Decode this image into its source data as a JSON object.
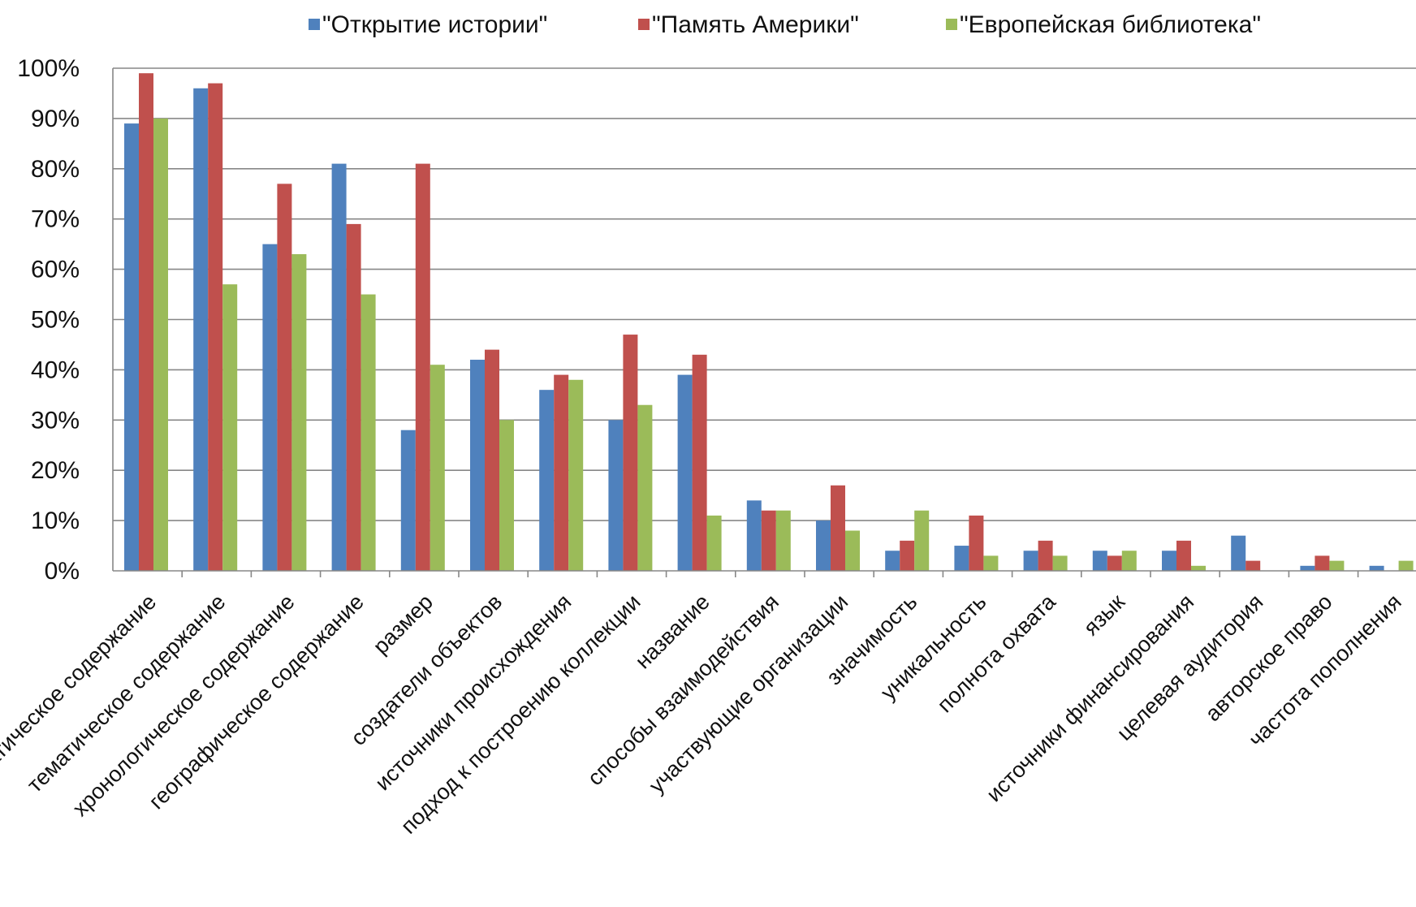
{
  "chart_data": {
    "type": "bar",
    "title": "",
    "xlabel": "",
    "ylabel": "",
    "ylim": [
      0,
      100
    ],
    "y_ticks": [
      "0%",
      "10%",
      "20%",
      "30%",
      "40%",
      "50%",
      "60%",
      "70%",
      "80%",
      "90%",
      "100%"
    ],
    "grid": true,
    "legend_position": "top",
    "categories": [
      "тематическое содержание",
      "тематическое содержание",
      "хронологическое содержание",
      "географическое содержание",
      "размер",
      "создатели объектов",
      "источники происхождения",
      "подход к построению коллекции",
      "название",
      "способы взаимодействия",
      "участвующие организации",
      "значимость",
      "уникальность",
      "полнота охвата",
      "язык",
      "источники финансирования",
      "целевая аудитория",
      "авторское право",
      "частота пополнения"
    ],
    "series": [
      {
        "name": "\"Открытие истории\"",
        "color": "#4f81bd",
        "values": [
          89,
          96,
          65,
          81,
          28,
          42,
          36,
          30,
          39,
          14,
          10,
          4,
          5,
          4,
          4,
          4,
          7,
          1,
          1
        ]
      },
      {
        "name": "\"Память Америки\"",
        "color": "#c0504d",
        "values": [
          99,
          97,
          77,
          69,
          81,
          44,
          39,
          47,
          43,
          12,
          17,
          6,
          11,
          6,
          3,
          6,
          2,
          3,
          0
        ]
      },
      {
        "name": "\"Европейская библиотека\"",
        "color": "#9bbb59",
        "values": [
          90,
          57,
          63,
          55,
          41,
          30,
          38,
          33,
          11,
          12,
          8,
          12,
          3,
          3,
          4,
          1,
          0,
          2,
          2
        ]
      }
    ]
  }
}
